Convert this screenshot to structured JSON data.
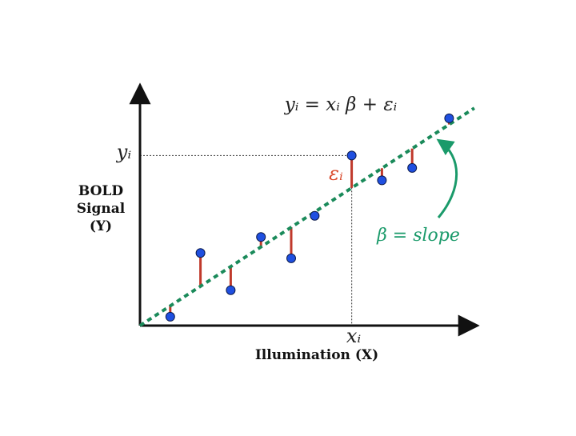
{
  "chart_data": {
    "type": "scatter",
    "title": "",
    "xlabel": "Illumination (X)",
    "ylabel_lines": [
      "BOLD",
      "Signal",
      "(Y)"
    ],
    "equation": "yᵢ = xᵢ β + εᵢ",
    "residual_label": "εᵢ",
    "slope_label": "β = slope",
    "x_tick_label": "xᵢ",
    "y_tick_label": "yᵢ",
    "xlim": [
      0,
      10
    ],
    "ylim": [
      0,
      7
    ],
    "fit_line": {
      "intercept": 0,
      "slope": 0.617
    },
    "highlighted_index": 6,
    "points": [
      {
        "x": 0.9,
        "y": 0.25
      },
      {
        "x": 1.8,
        "y": 2.05
      },
      {
        "x": 2.7,
        "y": 1.0
      },
      {
        "x": 3.6,
        "y": 2.5
      },
      {
        "x": 4.5,
        "y": 1.9
      },
      {
        "x": 5.2,
        "y": 3.1
      },
      {
        "x": 6.3,
        "y": 4.8
      },
      {
        "x": 7.2,
        "y": 4.1
      },
      {
        "x": 8.1,
        "y": 4.45
      },
      {
        "x": 9.2,
        "y": 5.85
      }
    ],
    "colors": {
      "points": "#1f4fe0",
      "point_outline": "#0b1a4a",
      "fit_line": "#1a8a5a",
      "residuals": "#c0392b",
      "residual_label": "#d9482b",
      "slope_annotation": "#1a9a6a",
      "axes": "#111111",
      "guides": "#555555"
    }
  }
}
